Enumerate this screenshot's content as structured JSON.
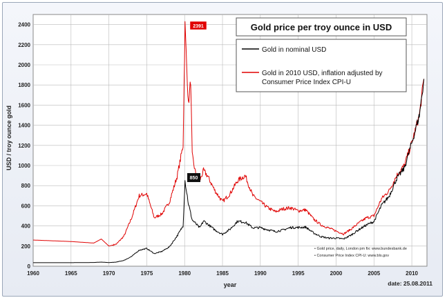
{
  "chart_data": {
    "type": "line",
    "title": "Gold price per troy ounce in USD",
    "xlabel": "year",
    "ylabel": "USD / troy ounce gold",
    "xlim": [
      1960,
      2012
    ],
    "ylim": [
      0,
      2500
    ],
    "x_ticks": [
      "1960",
      "1965",
      "1970",
      "1975",
      "1980",
      "1985",
      "1990",
      "1995",
      "2000",
      "2005",
      "2010"
    ],
    "y_ticks": [
      "0",
      "200",
      "400",
      "600",
      "800",
      "1000",
      "1200",
      "1400",
      "1600",
      "1800",
      "2000",
      "2200",
      "2400"
    ],
    "grid": true,
    "legend_position": "top-right",
    "series": [
      {
        "name": "Gold in nominal USD",
        "color": "#000000",
        "points": [
          [
            1960,
            35
          ],
          [
            1965,
            35
          ],
          [
            1968,
            37
          ],
          [
            1969,
            41
          ],
          [
            1970,
            36
          ],
          [
            1971,
            41
          ],
          [
            1972,
            58
          ],
          [
            1973,
            97
          ],
          [
            1974,
            159
          ],
          [
            1975,
            176
          ],
          [
            1976,
            125
          ],
          [
            1977,
            147
          ],
          [
            1978,
            193
          ],
          [
            1979,
            300
          ],
          [
            1979.8,
            400
          ],
          [
            1980.05,
            850
          ],
          [
            1980.5,
            620
          ],
          [
            1981,
            460
          ],
          [
            1981.5,
            420
          ],
          [
            1982,
            380
          ],
          [
            1982.5,
            450
          ],
          [
            1983,
            420
          ],
          [
            1984,
            360
          ],
          [
            1985,
            317
          ],
          [
            1986,
            368
          ],
          [
            1987,
            447
          ],
          [
            1988,
            437
          ],
          [
            1989,
            381
          ],
          [
            1990,
            383
          ],
          [
            1991,
            362
          ],
          [
            1992,
            344
          ],
          [
            1993,
            360
          ],
          [
            1994,
            384
          ],
          [
            1995,
            384
          ],
          [
            1996,
            388
          ],
          [
            1997,
            331
          ],
          [
            1998,
            294
          ],
          [
            1999,
            279
          ],
          [
            2000,
            279
          ],
          [
            2001,
            271
          ],
          [
            2002,
            310
          ],
          [
            2003,
            363
          ],
          [
            2004,
            409
          ],
          [
            2005,
            444
          ],
          [
            2006,
            603
          ],
          [
            2007,
            695
          ],
          [
            2008,
            872
          ],
          [
            2009,
            972
          ],
          [
            2010,
            1225
          ],
          [
            2011,
            1500
          ],
          [
            2011.6,
            1860
          ]
        ]
      },
      {
        "name": "Gold in 2010 USD, inflation adjusted by Consumer Price Index CPI-U",
        "color": "#e00000",
        "points": [
          [
            1960,
            260
          ],
          [
            1965,
            245
          ],
          [
            1968,
            230
          ],
          [
            1969,
            270
          ],
          [
            1970,
            200
          ],
          [
            1971,
            220
          ],
          [
            1972,
            300
          ],
          [
            1973,
            480
          ],
          [
            1974,
            700
          ],
          [
            1975,
            720
          ],
          [
            1976,
            480
          ],
          [
            1977,
            520
          ],
          [
            1978,
            640
          ],
          [
            1979,
            890
          ],
          [
            1979.8,
            1200
          ],
          [
            1980.05,
            2391
          ],
          [
            1980.5,
            1600
          ],
          [
            1980.8,
            1850
          ],
          [
            1981,
            1100
          ],
          [
            1981.5,
            900
          ],
          [
            1982,
            850
          ],
          [
            1982.5,
            950
          ],
          [
            1983,
            900
          ],
          [
            1984,
            750
          ],
          [
            1985,
            640
          ],
          [
            1986,
            720
          ],
          [
            1987,
            850
          ],
          [
            1988,
            900
          ],
          [
            1989,
            700
          ],
          [
            1990,
            640
          ],
          [
            1991,
            580
          ],
          [
            1992,
            540
          ],
          [
            1993,
            570
          ],
          [
            1994,
            580
          ],
          [
            1995,
            550
          ],
          [
            1996,
            560
          ],
          [
            1997,
            470
          ],
          [
            1998,
            410
          ],
          [
            1999,
            380
          ],
          [
            2000,
            350
          ],
          [
            2001,
            320
          ],
          [
            2002,
            370
          ],
          [
            2003,
            430
          ],
          [
            2004,
            480
          ],
          [
            2005,
            500
          ],
          [
            2006,
            670
          ],
          [
            2007,
            750
          ],
          [
            2008,
            900
          ],
          [
            2009,
            1000
          ],
          [
            2010,
            1225
          ],
          [
            2011,
            1500
          ],
          [
            2011.6,
            1860
          ]
        ]
      }
    ],
    "annotations": [
      "2391",
      "850"
    ],
    "sources": [
      "• Gold price, daily, London pm fix: www.bundesbank.de",
      "• Consumer Price Index CPI-U: www.bls.gov"
    ],
    "date_label": "date: 25.08.2011"
  }
}
